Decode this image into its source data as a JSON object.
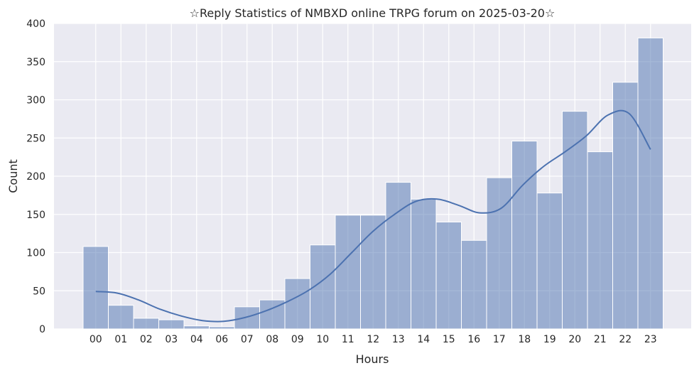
{
  "chart_data": {
    "type": "bar",
    "title": "☆Reply Statistics of NMBXD online TRPG forum on 2025-03-20☆",
    "xlabel": "Hours",
    "ylabel": "Count",
    "categories": [
      "00",
      "01",
      "02",
      "03",
      "04",
      "06",
      "07",
      "08",
      "09",
      "10",
      "11",
      "12",
      "13",
      "14",
      "15",
      "16",
      "17",
      "18",
      "19",
      "20",
      "21",
      "22",
      "23"
    ],
    "values": [
      108,
      31,
      14,
      12,
      4,
      3,
      29,
      38,
      66,
      110,
      149,
      149,
      192,
      170,
      140,
      116,
      198,
      246,
      178,
      285,
      232,
      323,
      381
    ],
    "ylim": [
      0,
      400
    ],
    "yticks": [
      0,
      50,
      100,
      150,
      200,
      250,
      300,
      350,
      400
    ],
    "kde": [
      49,
      47,
      38,
      26,
      17,
      11,
      10,
      15,
      24,
      36,
      51,
      72,
      100,
      128,
      150,
      167,
      170,
      162,
      152,
      158,
      188,
      213,
      232,
      253,
      280,
      282,
      235
    ],
    "grid": true,
    "bar_color": "#4c72b0",
    "line_color": "#4c72b0",
    "background": "#eaeaf2"
  }
}
